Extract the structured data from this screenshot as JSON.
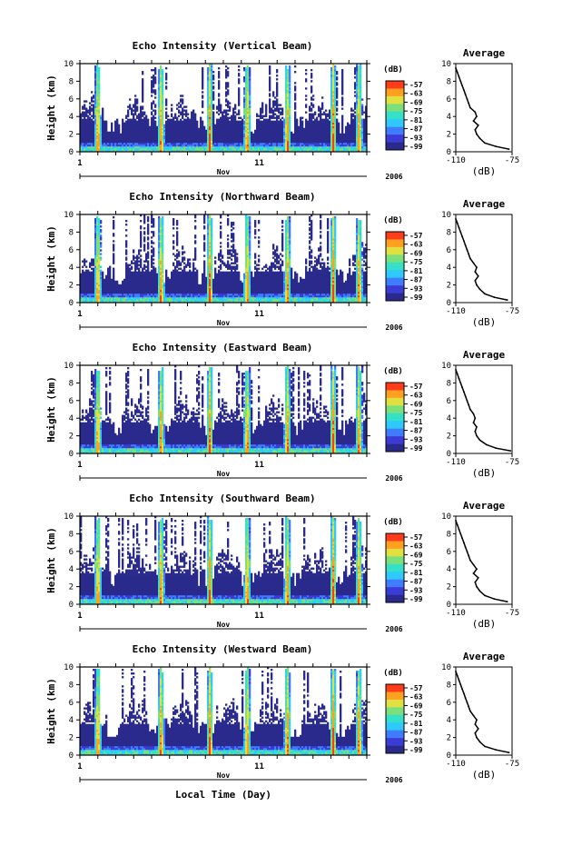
{
  "figure": {
    "xlabel": "Local Time (Day)",
    "month_label": "Nov",
    "year_label": "2006",
    "x_ticks": [
      "1",
      "11"
    ]
  },
  "colors": {
    "scale": [
      "#2a2a8c",
      "#3b3bd6",
      "#3f7cff",
      "#2fc8ff",
      "#34e0c8",
      "#7be07b",
      "#e0e040",
      "#ffa020",
      "#ff3b1a"
    ],
    "white": "#ffffff"
  },
  "chart_data": [
    {
      "type": "heatmap",
      "title": "Echo Intensity (Vertical Beam)",
      "ylabel": "Height (km)",
      "yticks": [
        "0",
        "2",
        "4",
        "6",
        "8",
        "10"
      ],
      "ylim": [
        0,
        10
      ],
      "colorbar": {
        "label": "(dB)",
        "ticks": [
          "-57",
          "-63",
          "-69",
          "-75",
          "-81",
          "-87",
          "-93",
          "-99"
        ]
      },
      "average": {
        "title": "Average",
        "xlabel": "(dB)",
        "xticks": [
          "-110",
          "-75"
        ],
        "yticks": [
          "0",
          "2",
          "4",
          "6",
          "8",
          "10"
        ],
        "height": [
          0.3,
          0.6,
          1,
          1.5,
          2,
          2.5,
          3,
          3.5,
          4,
          4.5,
          5,
          5.5,
          6,
          6.5,
          7,
          7.5,
          8,
          8.5,
          9,
          9.5
        ],
        "db": [
          -77,
          -85,
          -92,
          -95,
          -97,
          -98,
          -96,
          -99,
          -97,
          -98,
          -101,
          -102,
          -103,
          -104,
          -105,
          -106,
          -107,
          -108,
          -109,
          -110
        ]
      }
    },
    {
      "type": "heatmap",
      "title": "Echo Intensity (Northward Beam)",
      "ylabel": "Height (km)",
      "yticks": [
        "0",
        "2",
        "4",
        "6",
        "8",
        "10"
      ],
      "ylim": [
        0,
        10
      ],
      "colorbar": {
        "label": "(dB)",
        "ticks": [
          "-57",
          "-63",
          "-69",
          "-75",
          "-81",
          "-87",
          "-93",
          "-99"
        ]
      },
      "average": {
        "title": "Average",
        "xlabel": "(dB)",
        "xticks": [
          "-110",
          "-75"
        ],
        "yticks": [
          "0",
          "2",
          "4",
          "6",
          "8",
          "10"
        ],
        "height": [
          0.3,
          0.6,
          1,
          1.5,
          2,
          2.5,
          3,
          3.5,
          4,
          4.5,
          5,
          5.5,
          6,
          6.5,
          7,
          7.5,
          8,
          8.5,
          9,
          9.5
        ],
        "db": [
          -78,
          -86,
          -92,
          -95,
          -97,
          -98,
          -96,
          -98,
          -97,
          -99,
          -101,
          -102,
          -103,
          -104,
          -105,
          -106,
          -107,
          -108,
          -109,
          -110
        ]
      }
    },
    {
      "type": "heatmap",
      "title": "Echo Intensity (Eastward Beam)",
      "ylabel": "Height (km)",
      "yticks": [
        "0",
        "2",
        "4",
        "6",
        "8",
        "10"
      ],
      "ylim": [
        0,
        10
      ],
      "colorbar": {
        "label": "(dB)",
        "ticks": [
          "-57",
          "-63",
          "-69",
          "-75",
          "-81",
          "-87",
          "-93",
          "-99"
        ]
      },
      "average": {
        "title": "Average",
        "xlabel": "(dB)",
        "xticks": [
          "-110",
          "-75"
        ],
        "yticks": [
          "0",
          "2",
          "4",
          "6",
          "8",
          "10"
        ],
        "height": [
          0.3,
          0.6,
          1,
          1.5,
          2,
          2.5,
          3,
          3.5,
          4,
          4.5,
          5,
          5.5,
          6,
          6.5,
          7,
          7.5,
          8,
          8.5,
          9,
          9.5
        ],
        "db": [
          -76,
          -85,
          -91,
          -95,
          -97,
          -98,
          -97,
          -99,
          -98,
          -99,
          -101,
          -102,
          -103,
          -104,
          -105,
          -106,
          -107,
          -108,
          -109,
          -110
        ]
      }
    },
    {
      "type": "heatmap",
      "title": "Echo Intensity (Southward Beam)",
      "ylabel": "Height (km)",
      "yticks": [
        "0",
        "2",
        "4",
        "6",
        "8",
        "10"
      ],
      "ylim": [
        0,
        10
      ],
      "colorbar": {
        "label": "(dB)",
        "ticks": [
          "-57",
          "-63",
          "-69",
          "-75",
          "-81",
          "-87",
          "-93",
          "-99"
        ]
      },
      "average": {
        "title": "Average",
        "xlabel": "(dB)",
        "xticks": [
          "-110",
          "-75"
        ],
        "yticks": [
          "0",
          "2",
          "4",
          "6",
          "8",
          "10"
        ],
        "height": [
          0.3,
          0.6,
          1,
          1.5,
          2,
          2.5,
          3,
          3.5,
          4,
          4.5,
          5,
          5.5,
          6,
          6.5,
          7,
          7.5,
          8,
          8.5,
          9,
          9.5
        ],
        "db": [
          -78,
          -86,
          -92,
          -95,
          -97,
          -98,
          -96,
          -99,
          -97,
          -99,
          -101,
          -102,
          -103,
          -104,
          -105,
          -106,
          -107,
          -108,
          -109,
          -110
        ]
      }
    },
    {
      "type": "heatmap",
      "title": "Echo Intensity (Westward Beam)",
      "ylabel": "Height (km)",
      "yticks": [
        "0",
        "2",
        "4",
        "6",
        "8",
        "10"
      ],
      "ylim": [
        0,
        10
      ],
      "colorbar": {
        "label": "(dB)",
        "ticks": [
          "-57",
          "-63",
          "-69",
          "-75",
          "-81",
          "-87",
          "-93",
          "-99"
        ]
      },
      "average": {
        "title": "Average",
        "xlabel": "(dB)",
        "xticks": [
          "-110",
          "-75"
        ],
        "yticks": [
          "0",
          "2",
          "4",
          "6",
          "8",
          "10"
        ],
        "height": [
          0.3,
          0.6,
          1,
          1.5,
          2,
          2.5,
          3,
          3.5,
          4,
          4.5,
          5,
          5.5,
          6,
          6.5,
          7,
          7.5,
          8,
          8.5,
          9,
          9.5
        ],
        "db": [
          -77,
          -85,
          -92,
          -95,
          -97,
          -98,
          -96,
          -98,
          -97,
          -99,
          -101,
          -102,
          -103,
          -104,
          -105,
          -106,
          -107,
          -108,
          -109,
          -110
        ]
      }
    }
  ]
}
